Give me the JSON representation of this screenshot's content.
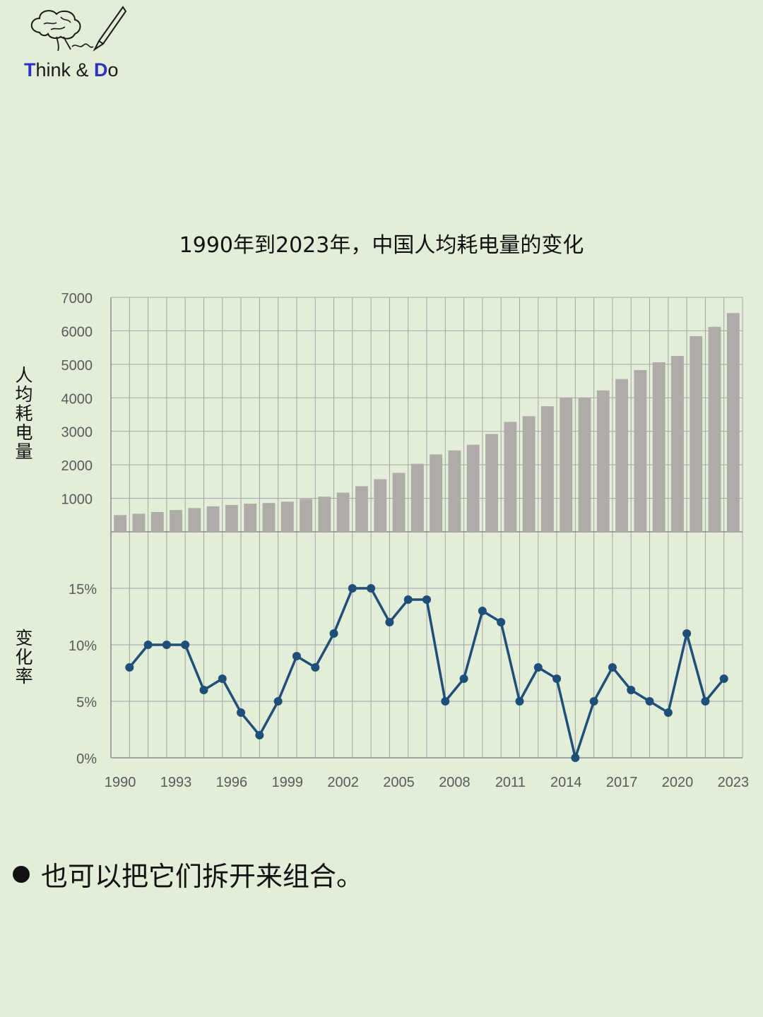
{
  "logo": {
    "letter_t": "T",
    "text_mid": "hink & ",
    "letter_d": "D",
    "text_end": "o"
  },
  "chart_data": [
    {
      "type": "bar",
      "title": "1990年到2023年，中国人均耗电量的变化",
      "ylabel": "人均耗电量",
      "xlabel": "",
      "ylim": [
        0,
        7000
      ],
      "yticks": [
        "",
        "1000",
        "2000",
        "3000",
        "4000",
        "5000",
        "6000",
        "7000"
      ],
      "grid": true,
      "bar_color": "#b0aaa9",
      "x": [
        1990,
        1991,
        1992,
        1993,
        1994,
        1995,
        1996,
        1997,
        1998,
        1999,
        2000,
        2001,
        2002,
        2003,
        2004,
        2005,
        2006,
        2007,
        2008,
        2009,
        2010,
        2011,
        2012,
        2013,
        2014,
        2015,
        2016,
        2017,
        2018,
        2019,
        2020,
        2021,
        2022,
        2023
      ],
      "values": [
        500,
        540,
        590,
        650,
        710,
        760,
        800,
        840,
        860,
        900,
        980,
        1050,
        1170,
        1360,
        1570,
        1760,
        2030,
        2310,
        2430,
        2600,
        2920,
        3280,
        3450,
        3750,
        4000,
        4000,
        4220,
        4560,
        4830,
        5060,
        5250,
        5840,
        6120,
        6530
      ]
    },
    {
      "type": "line",
      "ylabel": "变化率",
      "xlabel": "",
      "ylim": [
        0,
        20
      ],
      "yticks": [
        "0%",
        "5%",
        "10%",
        "15%"
      ],
      "grid": true,
      "line_color": "#1f4e79",
      "xticklabels": [
        "1990",
        "1993",
        "1996",
        "1999",
        "2002",
        "2005",
        "2008",
        "2011",
        "2014",
        "2017",
        "2020",
        "2023"
      ],
      "x": [
        1991,
        1992,
        1993,
        1994,
        1995,
        1996,
        1997,
        1998,
        1999,
        2000,
        2001,
        2002,
        2003,
        2004,
        2005,
        2006,
        2007,
        2008,
        2009,
        2010,
        2011,
        2012,
        2013,
        2014,
        2015,
        2016,
        2017,
        2018,
        2019,
        2020,
        2021,
        2022,
        2023
      ],
      "values": [
        8,
        10,
        10,
        10,
        6,
        7,
        4,
        2,
        5,
        9,
        8,
        11,
        15,
        15,
        12,
        14,
        14,
        5,
        7,
        13,
        12,
        5,
        8,
        7,
        0,
        5,
        8,
        6,
        5,
        4,
        11,
        5,
        7
      ]
    }
  ],
  "note": {
    "text": "也可以把它们拆开来组合。"
  }
}
